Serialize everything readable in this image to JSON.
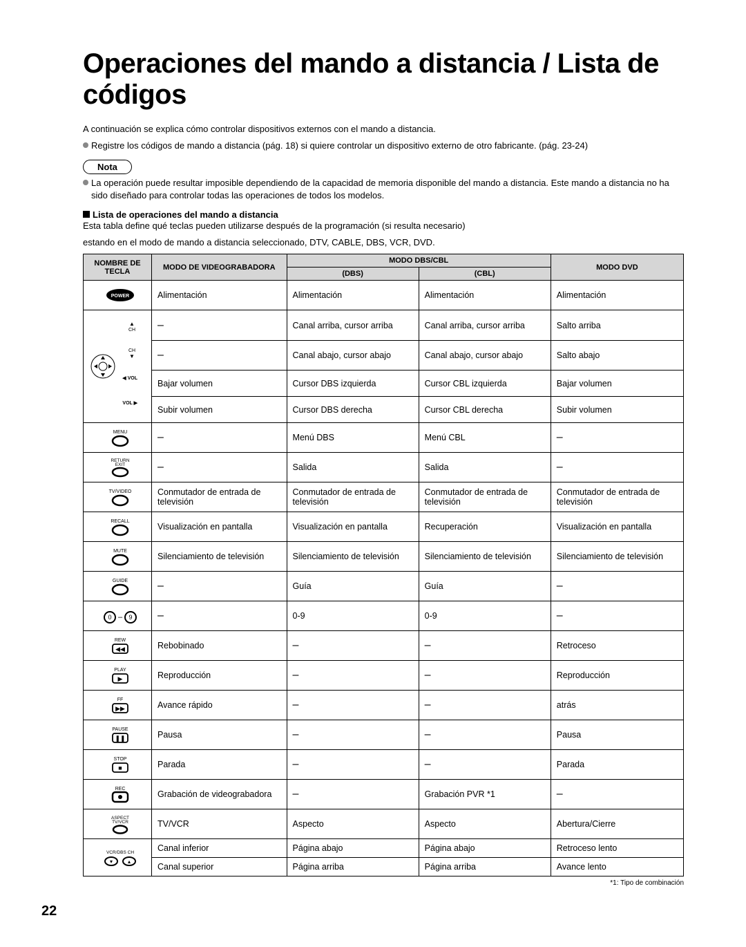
{
  "title": "Operaciones del mando a distancia / Lista de códigos",
  "intro_line1": "A continuación se explica cómo controlar dispositivos externos con el mando a distancia.",
  "intro_line2": "Registre los códigos de mando a distancia (pág. 18) si quiere controlar un dispositivo externo de otro fabricante. (pág. 23-24)",
  "nota_label": "Nota",
  "nota_text": "La operación puede resultar imposible dependiendo de la capacidad de memoria disponible del mando a distancia. Este mando a distancia no ha sido diseñado para controlar todas las operaciones de todos los modelos.",
  "section_heading": "Lista de operaciones del mando a distancia",
  "section_sub1": "Esta tabla define qué teclas pueden utilizarse después de la programación (si resulta necesario)",
  "section_sub2": "estando en el modo de mando a distancia seleccionado, DTV, CABLE, DBS, VCR, DVD.",
  "headers": {
    "key": "NOMBRE DE\nTECLA",
    "vcr": "MODO DE VIDEOGRABADORA",
    "dbscbl": "MODO DBS/CBL",
    "dbs": "(DBS)",
    "cbl": "(CBL)",
    "dvd": "MODO DVD"
  },
  "rows": [
    {
      "key": "power",
      "vcr": "Alimentación",
      "dbs": "Alimentación",
      "cbl": "Alimentación",
      "dvd": "Alimentación"
    },
    {
      "key": "ch_up",
      "vcr": "–",
      "dbs": "Canal arriba, cursor arriba",
      "cbl": "Canal arriba, cursor arriba",
      "dvd": "Salto arriba"
    },
    {
      "key": "ch_down",
      "vcr": "–",
      "dbs": "Canal abajo, cursor abajo",
      "cbl": "Canal abajo, cursor abajo",
      "dvd": "Salto abajo"
    },
    {
      "key": "vol_down",
      "vcr": "Bajar volumen",
      "dbs": "Cursor DBS izquierda",
      "cbl": "Cursor CBL izquierda",
      "dvd": "Bajar volumen"
    },
    {
      "key": "vol_up",
      "vcr": "Subir volumen",
      "dbs": "Cursor DBS derecha",
      "cbl": "Cursor CBL derecha",
      "dvd": "Subir volumen"
    },
    {
      "key": "menu",
      "vcr": "–",
      "dbs": "Menú DBS",
      "cbl": "Menú CBL",
      "dvd": "–"
    },
    {
      "key": "return",
      "vcr": "–",
      "dbs": "Salida",
      "cbl": "Salida",
      "dvd": "–"
    },
    {
      "key": "tvvideo",
      "vcr": "Conmutador de entrada de televisión",
      "dbs": "Conmutador de entrada de televisión",
      "cbl": "Conmutador de entrada de televisión",
      "dvd": "Conmutador de entrada de televisión"
    },
    {
      "key": "recall",
      "vcr": "Visualización en pantalla",
      "dbs": "Visualización en pantalla",
      "cbl": "Recuperación",
      "dvd": "Visualización en pantalla"
    },
    {
      "key": "mute",
      "vcr": "Silenciamiento de televisión",
      "dbs": "Silenciamiento de televisión",
      "cbl": "Silenciamiento de televisión",
      "dvd": "Silenciamiento de televisión"
    },
    {
      "key": "guide",
      "vcr": "–",
      "dbs": "Guía",
      "cbl": "Guía",
      "dvd": "–"
    },
    {
      "key": "digits",
      "vcr": "–",
      "dbs": "0-9",
      "cbl": "0-9",
      "dvd": "–"
    },
    {
      "key": "rew",
      "vcr": "Rebobinado",
      "dbs": "–",
      "cbl": "–",
      "dvd": "Retroceso"
    },
    {
      "key": "play",
      "vcr": "Reproducción",
      "dbs": "–",
      "cbl": "–",
      "dvd": "Reproducción"
    },
    {
      "key": "ff",
      "vcr": "Avance rápido",
      "dbs": "–",
      "cbl": "–",
      "dvd": "atrás"
    },
    {
      "key": "pause",
      "vcr": "Pausa",
      "dbs": "–",
      "cbl": "–",
      "dvd": "Pausa"
    },
    {
      "key": "stop",
      "vcr": "Parada",
      "dbs": "–",
      "cbl": "–",
      "dvd": "Parada"
    },
    {
      "key": "rec",
      "vcr": "Grabación de videograbadora",
      "dbs": "–",
      "cbl": "Grabación PVR *1",
      "dvd": "–"
    },
    {
      "key": "aspect",
      "vcr": "TV/VCR",
      "dbs": "Aspecto",
      "cbl": "Aspecto",
      "dvd": "Abertura/Cierre"
    },
    {
      "key": "vcrch_dn",
      "vcr": "Canal inferior",
      "dbs": "Página abajo",
      "cbl": "Página abajo",
      "dvd": "Retroceso lento"
    },
    {
      "key": "vcrch_up",
      "vcr": "Canal superior",
      "dbs": "Página arriba",
      "cbl": "Página arriba",
      "dvd": "Avance lento"
    }
  ],
  "footnote": "*1: Tipo de combinación",
  "page_number": "22",
  "key_icons": {
    "power": {
      "label": "POWER"
    },
    "ch_up": {
      "label": "CH▲"
    },
    "ch_down": {
      "label": "CH▼"
    },
    "vol_down": {
      "label": "◀VOL"
    },
    "vol_up": {
      "label": "VOL▶"
    },
    "menu": {
      "label": "MENU"
    },
    "return": {
      "label": "RETURN EXIT"
    },
    "tvvideo": {
      "label": "TV/VIDEO"
    },
    "recall": {
      "label": "RECALL"
    },
    "mute": {
      "label": "MUTE"
    },
    "guide": {
      "label": "GUIDE"
    },
    "digits": {
      "label": "0 – 9"
    },
    "rew": {
      "label": "REW"
    },
    "play": {
      "label": "PLAY"
    },
    "ff": {
      "label": "FF"
    },
    "pause": {
      "label": "PAUSE"
    },
    "stop": {
      "label": "STOP"
    },
    "rec": {
      "label": "REC"
    },
    "aspect": {
      "label": "ASPECT TV/VCR"
    },
    "vcrch_dn": {
      "label": "VCR/DBS CH"
    },
    "vcrch_up": {
      "label": ""
    }
  },
  "colors": {
    "header_bg": "#d6d6d6",
    "border": "#000000",
    "bullet": "#888888"
  }
}
